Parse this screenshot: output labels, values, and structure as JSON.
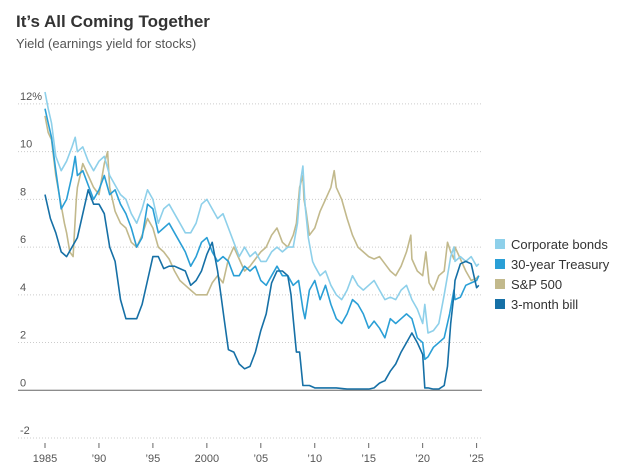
{
  "chart_data": {
    "type": "line",
    "title": "It’s All Coming Together",
    "subtitle": "Yield (earnings yield for stocks)",
    "xlabel": "",
    "ylabel": "",
    "xlim": [
      1985,
      2025.5
    ],
    "ylim": [
      -2,
      12.5
    ],
    "y_ticks": [
      {
        "value": 12,
        "label": "12%"
      },
      {
        "value": 10,
        "label": "10"
      },
      {
        "value": 8,
        "label": "8"
      },
      {
        "value": 6,
        "label": "6"
      },
      {
        "value": 4,
        "label": "4"
      },
      {
        "value": 2,
        "label": "2"
      },
      {
        "value": 0,
        "label": "0"
      },
      {
        "value": -2,
        "label": "-2"
      }
    ],
    "x_ticks": [
      {
        "value": 1985,
        "label": "1985"
      },
      {
        "value": 1990,
        "label": "’90"
      },
      {
        "value": 1995,
        "label": "’95"
      },
      {
        "value": 2000,
        "label": "2000"
      },
      {
        "value": 2005,
        "label": "’05"
      },
      {
        "value": 2010,
        "label": "’10"
      },
      {
        "value": 2015,
        "label": "’15"
      },
      {
        "value": 2020,
        "label": "’20"
      },
      {
        "value": 2025,
        "label": "’25"
      }
    ],
    "series": [
      {
        "name": "S&P 500",
        "color": "#c2b98c",
        "x": [
          1985,
          1985.3,
          1985.6,
          1986,
          1986.4,
          1986.8,
          1987,
          1987.3,
          1987.6,
          1987.9,
          1988,
          1988.5,
          1989,
          1989.5,
          1990,
          1990.5,
          1990.8,
          1991,
          1991.5,
          1992,
          1992.5,
          1993,
          1993.5,
          1994,
          1994.5,
          1995,
          1995.5,
          1996,
          1996.5,
          1997,
          1997.5,
          1998,
          1998.5,
          1999,
          1999.5,
          2000,
          2000.5,
          2001,
          2001.5,
          2002,
          2002.5,
          2003,
          2003.5,
          2004,
          2004.5,
          2005,
          2005.5,
          2006,
          2006.5,
          2007,
          2007.5,
          2008,
          2008.3,
          2008.6,
          2008.9,
          2009,
          2009.2,
          2009.5,
          2010,
          2010.5,
          2011,
          2011.5,
          2011.8,
          2012,
          2012.5,
          2013,
          2013.5,
          2014,
          2014.5,
          2015,
          2015.5,
          2016,
          2016.5,
          2017,
          2017.5,
          2018,
          2018.5,
          2018.9,
          2019,
          2019.5,
          2020,
          2020.3,
          2020.6,
          2021,
          2021.5,
          2022,
          2022.3,
          2022.6,
          2022.9,
          2023,
          2023.5,
          2024,
          2024.5,
          2025,
          2025.2
        ],
        "values": [
          11.5,
          10.8,
          10.5,
          9.0,
          8.0,
          7.0,
          6.6,
          5.8,
          5.6,
          8.0,
          8.5,
          9.5,
          9.0,
          8.5,
          8.2,
          9.5,
          10.0,
          8.5,
          7.5,
          7.0,
          6.8,
          6.2,
          6.0,
          6.5,
          7.2,
          6.8,
          6.0,
          5.8,
          5.5,
          5.0,
          4.6,
          4.4,
          4.2,
          4.0,
          4.0,
          4.0,
          4.5,
          4.8,
          4.5,
          5.5,
          6.0,
          5.5,
          5.0,
          5.2,
          5.5,
          5.8,
          6.0,
          6.5,
          6.8,
          6.2,
          6.0,
          6.5,
          7.0,
          8.5,
          9.0,
          8.0,
          7.5,
          6.5,
          6.8,
          7.5,
          8.0,
          8.5,
          9.2,
          8.5,
          8.0,
          7.2,
          6.5,
          6.0,
          5.8,
          5.6,
          5.5,
          5.6,
          5.3,
          5.0,
          4.8,
          5.2,
          5.8,
          6.5,
          5.5,
          5.0,
          4.8,
          5.8,
          4.5,
          4.2,
          4.8,
          5.0,
          6.2,
          5.8,
          5.5,
          6.0,
          5.5,
          5.0,
          4.6,
          4.7,
          4.8
        ]
      },
      {
        "name": "Corporate bonds",
        "color": "#8ed0ea",
        "x": [
          1985,
          1985.3,
          1985.6,
          1986,
          1986.5,
          1987,
          1987.5,
          1987.8,
          1988,
          1988.5,
          1989,
          1989.5,
          1990,
          1990.5,
          1991,
          1991.5,
          1992,
          1992.5,
          1993,
          1993.5,
          1994,
          1994.5,
          1995,
          1995.5,
          1996,
          1996.5,
          1997,
          1997.5,
          1998,
          1998.5,
          1999,
          1999.5,
          2000,
          2000.5,
          2001,
          2001.5,
          2002,
          2002.5,
          2003,
          2003.5,
          2004,
          2004.5,
          2005,
          2005.5,
          2006,
          2006.5,
          2007,
          2007.5,
          2008,
          2008.4,
          2008.7,
          2008.9,
          2009.1,
          2009.4,
          2009.8,
          2010,
          2010.5,
          2011,
          2011.5,
          2012,
          2012.5,
          2013,
          2013.5,
          2014,
          2014.5,
          2015,
          2015.5,
          2016,
          2016.5,
          2017,
          2017.5,
          2018,
          2018.5,
          2019,
          2019.5,
          2020,
          2020.2,
          2020.5,
          2021,
          2021.5,
          2022,
          2022.3,
          2022.6,
          2022.9,
          2023,
          2023.5,
          2024,
          2024.5,
          2025,
          2025.2
        ],
        "values": [
          12.5,
          11.8,
          11.2,
          9.8,
          9.2,
          9.6,
          10.2,
          10.6,
          10.0,
          10.2,
          9.6,
          9.2,
          9.6,
          9.8,
          9.0,
          8.6,
          8.2,
          8.0,
          7.4,
          7.0,
          7.6,
          8.4,
          8.0,
          7.0,
          7.6,
          7.8,
          7.4,
          7.0,
          6.6,
          6.6,
          7.0,
          7.8,
          8.0,
          7.6,
          7.2,
          7.4,
          6.8,
          6.2,
          5.6,
          6.0,
          5.6,
          5.8,
          5.4,
          5.4,
          5.8,
          6.0,
          5.8,
          6.0,
          6.0,
          7.0,
          8.8,
          9.4,
          7.8,
          6.4,
          5.4,
          5.2,
          4.8,
          5.0,
          4.4,
          4.0,
          3.8,
          4.2,
          4.8,
          4.4,
          4.2,
          4.4,
          4.6,
          4.2,
          3.8,
          3.9,
          3.8,
          4.2,
          4.4,
          3.8,
          3.4,
          2.8,
          3.6,
          2.4,
          2.5,
          2.8,
          4.0,
          4.8,
          5.6,
          6.0,
          5.4,
          5.6,
          5.4,
          5.6,
          5.2,
          5.3
        ]
      },
      {
        "name": "30-year Treasury",
        "color": "#2a9fd6",
        "x": [
          1985,
          1985.3,
          1985.6,
          1986,
          1986.5,
          1987,
          1987.5,
          1987.8,
          1988,
          1988.5,
          1989,
          1989.5,
          1990,
          1990.5,
          1991,
          1991.5,
          1992,
          1992.5,
          1993,
          1993.5,
          1994,
          1994.5,
          1995,
          1995.5,
          1996,
          1996.5,
          1997,
          1997.5,
          1998,
          1998.5,
          1999,
          1999.5,
          2000,
          2000.5,
          2001,
          2001.5,
          2002,
          2002.5,
          2003,
          2003.5,
          2004,
          2004.5,
          2005,
          2005.5,
          2006,
          2006.5,
          2007,
          2007.5,
          2008,
          2008.5,
          2008.9,
          2009.1,
          2009.5,
          2010,
          2010.5,
          2011,
          2011.5,
          2012,
          2012.5,
          2013,
          2013.5,
          2014,
          2014.5,
          2015,
          2015.5,
          2016,
          2016.5,
          2017,
          2017.5,
          2018,
          2018.5,
          2019,
          2019.5,
          2020,
          2020.2,
          2020.5,
          2021,
          2021.5,
          2022,
          2022.5,
          2022.9,
          2023,
          2023.5,
          2024,
          2024.5,
          2025,
          2025.2
        ],
        "values": [
          11.8,
          11.2,
          10.6,
          9.2,
          7.6,
          8.0,
          9.0,
          9.8,
          9.0,
          9.2,
          8.6,
          8.0,
          8.4,
          9.0,
          8.2,
          8.4,
          7.8,
          7.4,
          6.8,
          6.0,
          6.4,
          7.8,
          7.6,
          6.6,
          6.8,
          7.0,
          6.6,
          6.2,
          5.8,
          5.2,
          5.6,
          6.2,
          6.4,
          5.8,
          5.4,
          5.6,
          5.4,
          4.8,
          4.8,
          5.2,
          5.0,
          5.2,
          4.6,
          4.4,
          4.8,
          5.2,
          4.8,
          4.8,
          4.4,
          4.6,
          3.4,
          3.0,
          4.2,
          4.6,
          3.8,
          4.4,
          3.6,
          3.0,
          2.8,
          3.2,
          3.8,
          3.6,
          3.2,
          2.6,
          2.9,
          2.6,
          2.2,
          3.0,
          2.8,
          3.0,
          3.2,
          3.0,
          2.2,
          2.0,
          1.3,
          1.4,
          1.8,
          2.0,
          2.2,
          3.2,
          4.2,
          3.8,
          3.9,
          4.4,
          4.5,
          4.6,
          4.8
        ]
      },
      {
        "name": "3-month bill",
        "color": "#1670a6",
        "x": [
          1985,
          1985.5,
          1986,
          1986.5,
          1987,
          1987.5,
          1988,
          1988.5,
          1989,
          1989.5,
          1990,
          1990.5,
          1991,
          1991.5,
          1992,
          1992.5,
          1993,
          1993.5,
          1994,
          1994.5,
          1995,
          1995.5,
          1996,
          1996.5,
          1997,
          1997.5,
          1998,
          1998.5,
          1999,
          1999.5,
          2000,
          2000.5,
          2001,
          2001.3,
          2001.6,
          2001.9,
          2002,
          2002.5,
          2003,
          2003.5,
          2004,
          2004.5,
          2005,
          2005.5,
          2006,
          2006.5,
          2007,
          2007.5,
          2007.8,
          2008,
          2008.3,
          2008.6,
          2008.9,
          2009,
          2009.5,
          2010,
          2011,
          2012,
          2013,
          2014,
          2015,
          2015.5,
          2016,
          2016.5,
          2017,
          2017.5,
          2018,
          2018.5,
          2019,
          2019.5,
          2020,
          2020.2,
          2020.5,
          2021,
          2021.5,
          2022,
          2022.3,
          2022.6,
          2022.9,
          2023,
          2023.5,
          2024,
          2024.5,
          2025,
          2025.2
        ],
        "values": [
          8.2,
          7.2,
          6.6,
          5.8,
          5.6,
          6.0,
          6.4,
          7.4,
          8.4,
          7.8,
          7.8,
          7.4,
          6.0,
          5.4,
          3.8,
          3.0,
          3.0,
          3.0,
          3.6,
          4.6,
          5.6,
          5.6,
          5.1,
          5.2,
          5.2,
          5.1,
          5.0,
          4.4,
          4.6,
          5.0,
          5.7,
          6.2,
          5.0,
          4.0,
          3.0,
          2.0,
          1.7,
          1.6,
          1.1,
          0.9,
          1.0,
          1.6,
          2.5,
          3.2,
          4.5,
          5.0,
          5.0,
          4.8,
          4.0,
          3.0,
          1.6,
          1.6,
          0.2,
          0.2,
          0.2,
          0.1,
          0.1,
          0.1,
          0.05,
          0.05,
          0.05,
          0.1,
          0.3,
          0.4,
          0.8,
          1.1,
          1.6,
          2.0,
          2.4,
          2.0,
          1.5,
          0.1,
          0.1,
          0.05,
          0.05,
          0.2,
          1.0,
          2.8,
          4.0,
          4.6,
          5.3,
          5.4,
          5.3,
          4.3,
          4.4
        ]
      }
    ],
    "legend_order": [
      "Corporate bonds",
      "30-year Treasury",
      "S&P 500",
      "3-month bill"
    ],
    "legend_position": "right"
  }
}
